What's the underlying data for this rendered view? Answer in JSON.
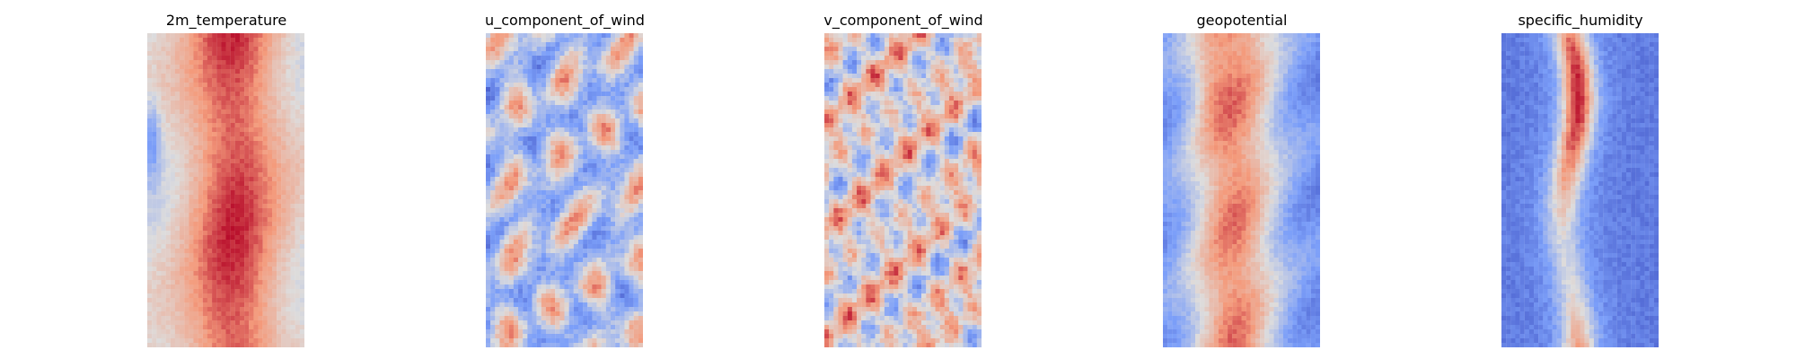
{
  "chart_data": [
    {
      "type": "heatmap",
      "title": "2m_temperature",
      "colormap": "coolwarm",
      "grid": false,
      "axes_visible": false
    },
    {
      "type": "heatmap",
      "title": "u_component_of_wind",
      "colormap": "coolwarm",
      "grid": false,
      "axes_visible": false
    },
    {
      "type": "heatmap",
      "title": "v_component_of_wind",
      "colormap": "coolwarm",
      "grid": false,
      "axes_visible": false
    },
    {
      "type": "heatmap",
      "title": "geopotential",
      "colormap": "coolwarm",
      "grid": false,
      "axes_visible": false
    },
    {
      "type": "heatmap",
      "title": "specific_humidity",
      "colormap": "coolwarm",
      "grid": false,
      "axes_visible": false
    }
  ]
}
